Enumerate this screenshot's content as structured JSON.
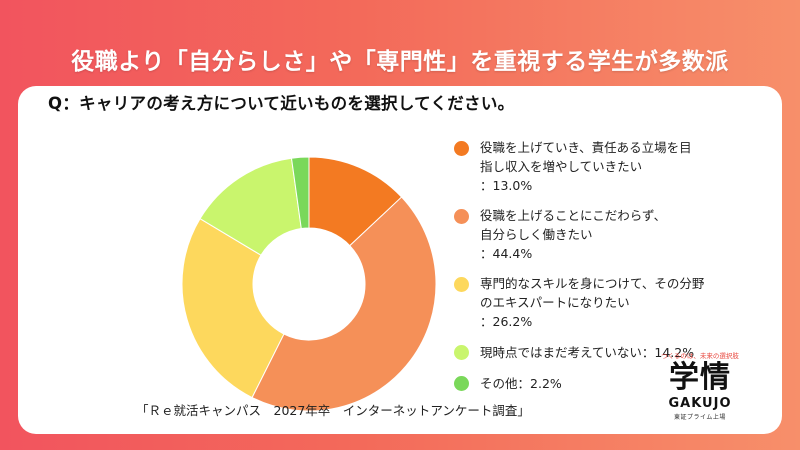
{
  "title": "役職より「自分らしさ」や「専門性」を重視する学生が多数派",
  "question": "Q：キャリアの考え方について近いものを選択してください。",
  "source": "「Ｒｅ就活キャンパス　2027年卒　インターネットアンケート調査」",
  "logo": {
    "tagline": "つくるのは、未来の選択肢",
    "mark": "学情",
    "english": "GAKUJO",
    "listed": "東証プライム上場"
  },
  "chart_data": {
    "type": "pie",
    "donut": true,
    "start": "12 o'clock",
    "direction": "clockwise",
    "slices": [
      {
        "label": "役職を上げていき、責任ある立場を目\n指し収入を増やしていきたい",
        "value": 13.0,
        "value_text": "：13.0%",
        "color": "#f37a22"
      },
      {
        "label": "役職を上げることにこだわらず、\n自分らしく働きたい",
        "value": 44.4,
        "value_text": "：44.4%",
        "color": "#f59058"
      },
      {
        "label": "専門的なスキルを身につけて、その分野\nのエキスパートになりたい",
        "value": 26.2,
        "value_text": "：26.2%",
        "color": "#fdd85d"
      },
      {
        "label": "現時点ではまだ考えていない",
        "value": 14.2,
        "value_text": "：14.2%",
        "color": "#c9f56d"
      },
      {
        "label": "その他",
        "value": 2.2,
        "value_text": "：2.2%",
        "color": "#7ad85a"
      }
    ]
  }
}
